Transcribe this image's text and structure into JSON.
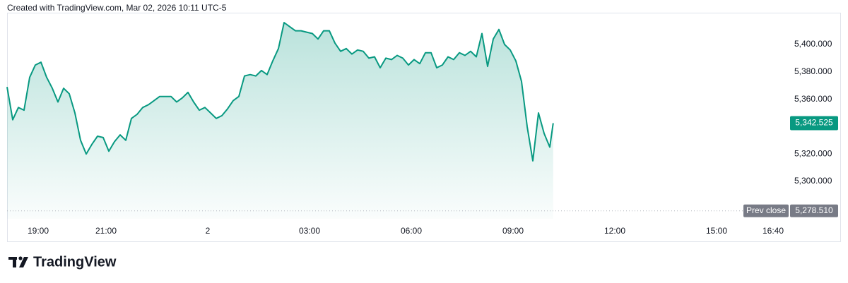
{
  "chart_data": {
    "type": "area",
    "title": "Created with TradingView.com, Mar 02, 2026 10:11 UTC-5",
    "color": "#089981",
    "x": [
      "18:05",
      "18:15",
      "18:25",
      "18:35",
      "18:45",
      "18:55",
      "19:05",
      "19:15",
      "19:25",
      "19:35",
      "19:45",
      "19:55",
      "20:05",
      "20:15",
      "20:25",
      "20:35",
      "20:45",
      "20:55",
      "21:05",
      "21:15",
      "21:25",
      "21:35",
      "21:45",
      "21:55",
      "22:05",
      "22:15",
      "22:25",
      "22:35",
      "22:45",
      "22:55",
      "23:05",
      "23:15",
      "23:25",
      "23:35",
      "23:45",
      "23:55",
      "00:05",
      "00:15",
      "00:25",
      "00:35",
      "00:45",
      "00:55",
      "01:05",
      "01:15",
      "01:25",
      "01:35",
      "01:45",
      "01:55",
      "02:05",
      "02:15",
      "02:25",
      "02:35",
      "02:45",
      "02:55",
      "03:05",
      "03:15",
      "03:25",
      "03:35",
      "03:45",
      "03:55",
      "04:05",
      "04:15",
      "04:25",
      "04:35",
      "04:45",
      "04:55",
      "05:05",
      "05:15",
      "05:25",
      "05:35",
      "05:45",
      "05:55",
      "06:05",
      "06:15",
      "06:25",
      "06:35",
      "06:45",
      "06:55",
      "07:05",
      "07:15",
      "07:25",
      "07:35",
      "07:45",
      "07:55",
      "08:05",
      "08:15",
      "08:25",
      "08:35",
      "08:45",
      "08:55",
      "09:05",
      "09:15",
      "09:25",
      "09:35",
      "09:45",
      "09:55",
      "10:05",
      "10:11"
    ],
    "values": [
      5369,
      5345,
      5354,
      5352,
      5376,
      5385,
      5387,
      5376,
      5368,
      5358,
      5368,
      5364,
      5350,
      5330,
      5320,
      5327,
      5333,
      5332,
      5322,
      5329,
      5334,
      5330,
      5346,
      5349,
      5354,
      5356,
      5359,
      5362,
      5362,
      5362,
      5358,
      5361,
      5365,
      5358,
      5352,
      5354,
      5350,
      5346,
      5348,
      5353,
      5359,
      5362,
      5377,
      5378,
      5377,
      5381,
      5378,
      5388,
      5397,
      5416,
      5413,
      5410,
      5410,
      5409,
      5408,
      5404,
      5410,
      5410,
      5401,
      5395,
      5397,
      5393,
      5396,
      5395,
      5390,
      5391,
      5383,
      5390,
      5389,
      5392,
      5390,
      5385,
      5389,
      5386,
      5394,
      5394,
      5383,
      5385,
      5391,
      5389,
      5394,
      5392,
      5395,
      5391,
      5408,
      5384,
      5404,
      5411,
      5400,
      5396,
      5388,
      5373,
      5340,
      5315,
      5350,
      5335,
      5325,
      5342.525
    ],
    "last_value_label": "5,342.525",
    "prev_close": {
      "name": "Prev close",
      "value": 5278.51,
      "label": "5,278.510"
    },
    "xlim": [
      "18:05",
      "17:00"
    ],
    "xticks": [
      "19:00",
      "21:00",
      {
        "value": "00:00",
        "label": "2"
      },
      "03:00",
      "06:00",
      "09:00",
      "12:00",
      "15:00",
      "16:40"
    ],
    "ylim": [
      5272.7,
      5423.2
    ],
    "yticks": [
      {
        "value": 5300,
        "label": "5,300.000"
      },
      {
        "value": 5320,
        "label": "5,320.000"
      },
      {
        "value": 5360,
        "label": "5,360.000"
      },
      {
        "value": 5380,
        "label": "5,380.000"
      },
      {
        "value": 5400,
        "label": "5,400.000"
      }
    ]
  },
  "brand": "TradingView"
}
